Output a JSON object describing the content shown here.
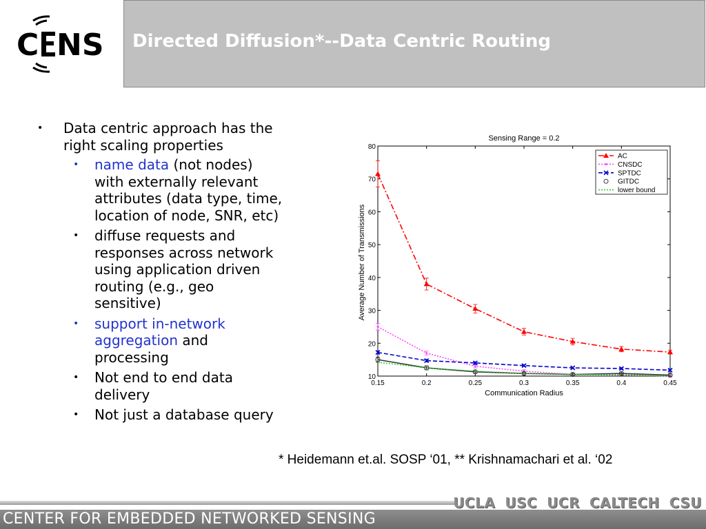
{
  "logo": {
    "text": "CENS"
  },
  "header": {
    "title": "Directed Diffusion*--Data Centric Routing"
  },
  "bullets": {
    "main": [
      "Data centric approach has the",
      "right scaling properties"
    ],
    "sub": [
      {
        "parts": [
          {
            "text": "name data",
            "blue": true
          },
          {
            "text": " (not nodes)"
          }
        ],
        "lines": [
          "with externally relevant",
          "attributes (data type, time,",
          "location of node, SNR, etc)"
        ]
      },
      {
        "parts": [
          {
            "text": "diffuse requests and"
          }
        ],
        "lines": [
          "responses across network",
          "using application driven",
          "routing (e.g., geo",
          "sensitive)"
        ]
      },
      {
        "parts": [
          {
            "text": "support in-network",
            "blue": true
          }
        ],
        "lines2": [
          {
            "text": "aggregation",
            "blue": true
          },
          {
            "text": " and"
          }
        ],
        "lines": [
          "processing"
        ]
      },
      {
        "parts": [
          {
            "text": "Not end to end data"
          }
        ],
        "lines": [
          "delivery"
        ]
      },
      {
        "parts": [
          {
            "text": "Not just a database query"
          }
        ],
        "lines": []
      }
    ]
  },
  "chart_data": {
    "type": "line",
    "title": "Sensing Range = 0.2",
    "xlabel": "Communication Radius",
    "ylabel": "Average Number of Transmissions",
    "x": [
      0.15,
      0.2,
      0.25,
      0.3,
      0.35,
      0.4,
      0.45
    ],
    "xticks": [
      "0.15",
      "0.2",
      "0.25",
      "0.3",
      "0.35",
      "0.4",
      "0.45"
    ],
    "yticks": [
      "10",
      "20",
      "30",
      "40",
      "50",
      "60",
      "70",
      "80"
    ],
    "xlim": [
      0.15,
      0.45
    ],
    "ylim": [
      10,
      80
    ],
    "legend_position": "top-right",
    "series": [
      {
        "name": "AC",
        "color": "#ff0000",
        "marker": "triangle",
        "dash": "dashdot",
        "values": [
          71.5,
          38,
          30.5,
          23.5,
          20.5,
          18.2,
          17.3
        ],
        "errors": [
          4,
          1.8,
          1.3,
          1,
          1,
          0.8,
          0.6
        ]
      },
      {
        "name": "CNSDC",
        "color": "#ff44ff",
        "marker": "dot",
        "dash": "dotted",
        "values": [
          25,
          17,
          13,
          11.5,
          10.5,
          10.5,
          10
        ],
        "errors": [
          1,
          0.6,
          0.5,
          0.4,
          0.3,
          0.3,
          0.3
        ]
      },
      {
        "name": "SPTDC",
        "color": "#0000cc",
        "marker": "x",
        "dash": "dashed",
        "values": [
          17.2,
          14.7,
          14,
          13.2,
          12.5,
          12.3,
          11.8
        ],
        "errors": [
          0.5,
          0.4,
          0.4,
          0.3,
          0.3,
          0.3,
          0.3
        ]
      },
      {
        "name": "GITDC",
        "color": "#333333",
        "marker": "circle",
        "dash": "none",
        "values": [
          15,
          12.5,
          11.3,
          10.8,
          10.5,
          10.8,
          10.3
        ],
        "errors": [
          0.8,
          0.6,
          0.5,
          0.4,
          0.4,
          0.4,
          0.4
        ]
      },
      {
        "name": "lower bound",
        "color": "#33cc33",
        "marker": "none",
        "dash": "dotted",
        "values": [
          14.2,
          12.5,
          11.5,
          10.8,
          10.5,
          10.3,
          10.1
        ],
        "errors": []
      }
    ]
  },
  "citation": "* Heidemann et.al. SOSP ‘01, ** Krishnamachari et al. ‘02",
  "footer": {
    "universities": [
      "UCLA",
      "USC",
      "UCR",
      "CALTECH",
      "CSU"
    ],
    "org_name": "CENTER FOR EMBEDDED NETWORKED SENSING"
  }
}
